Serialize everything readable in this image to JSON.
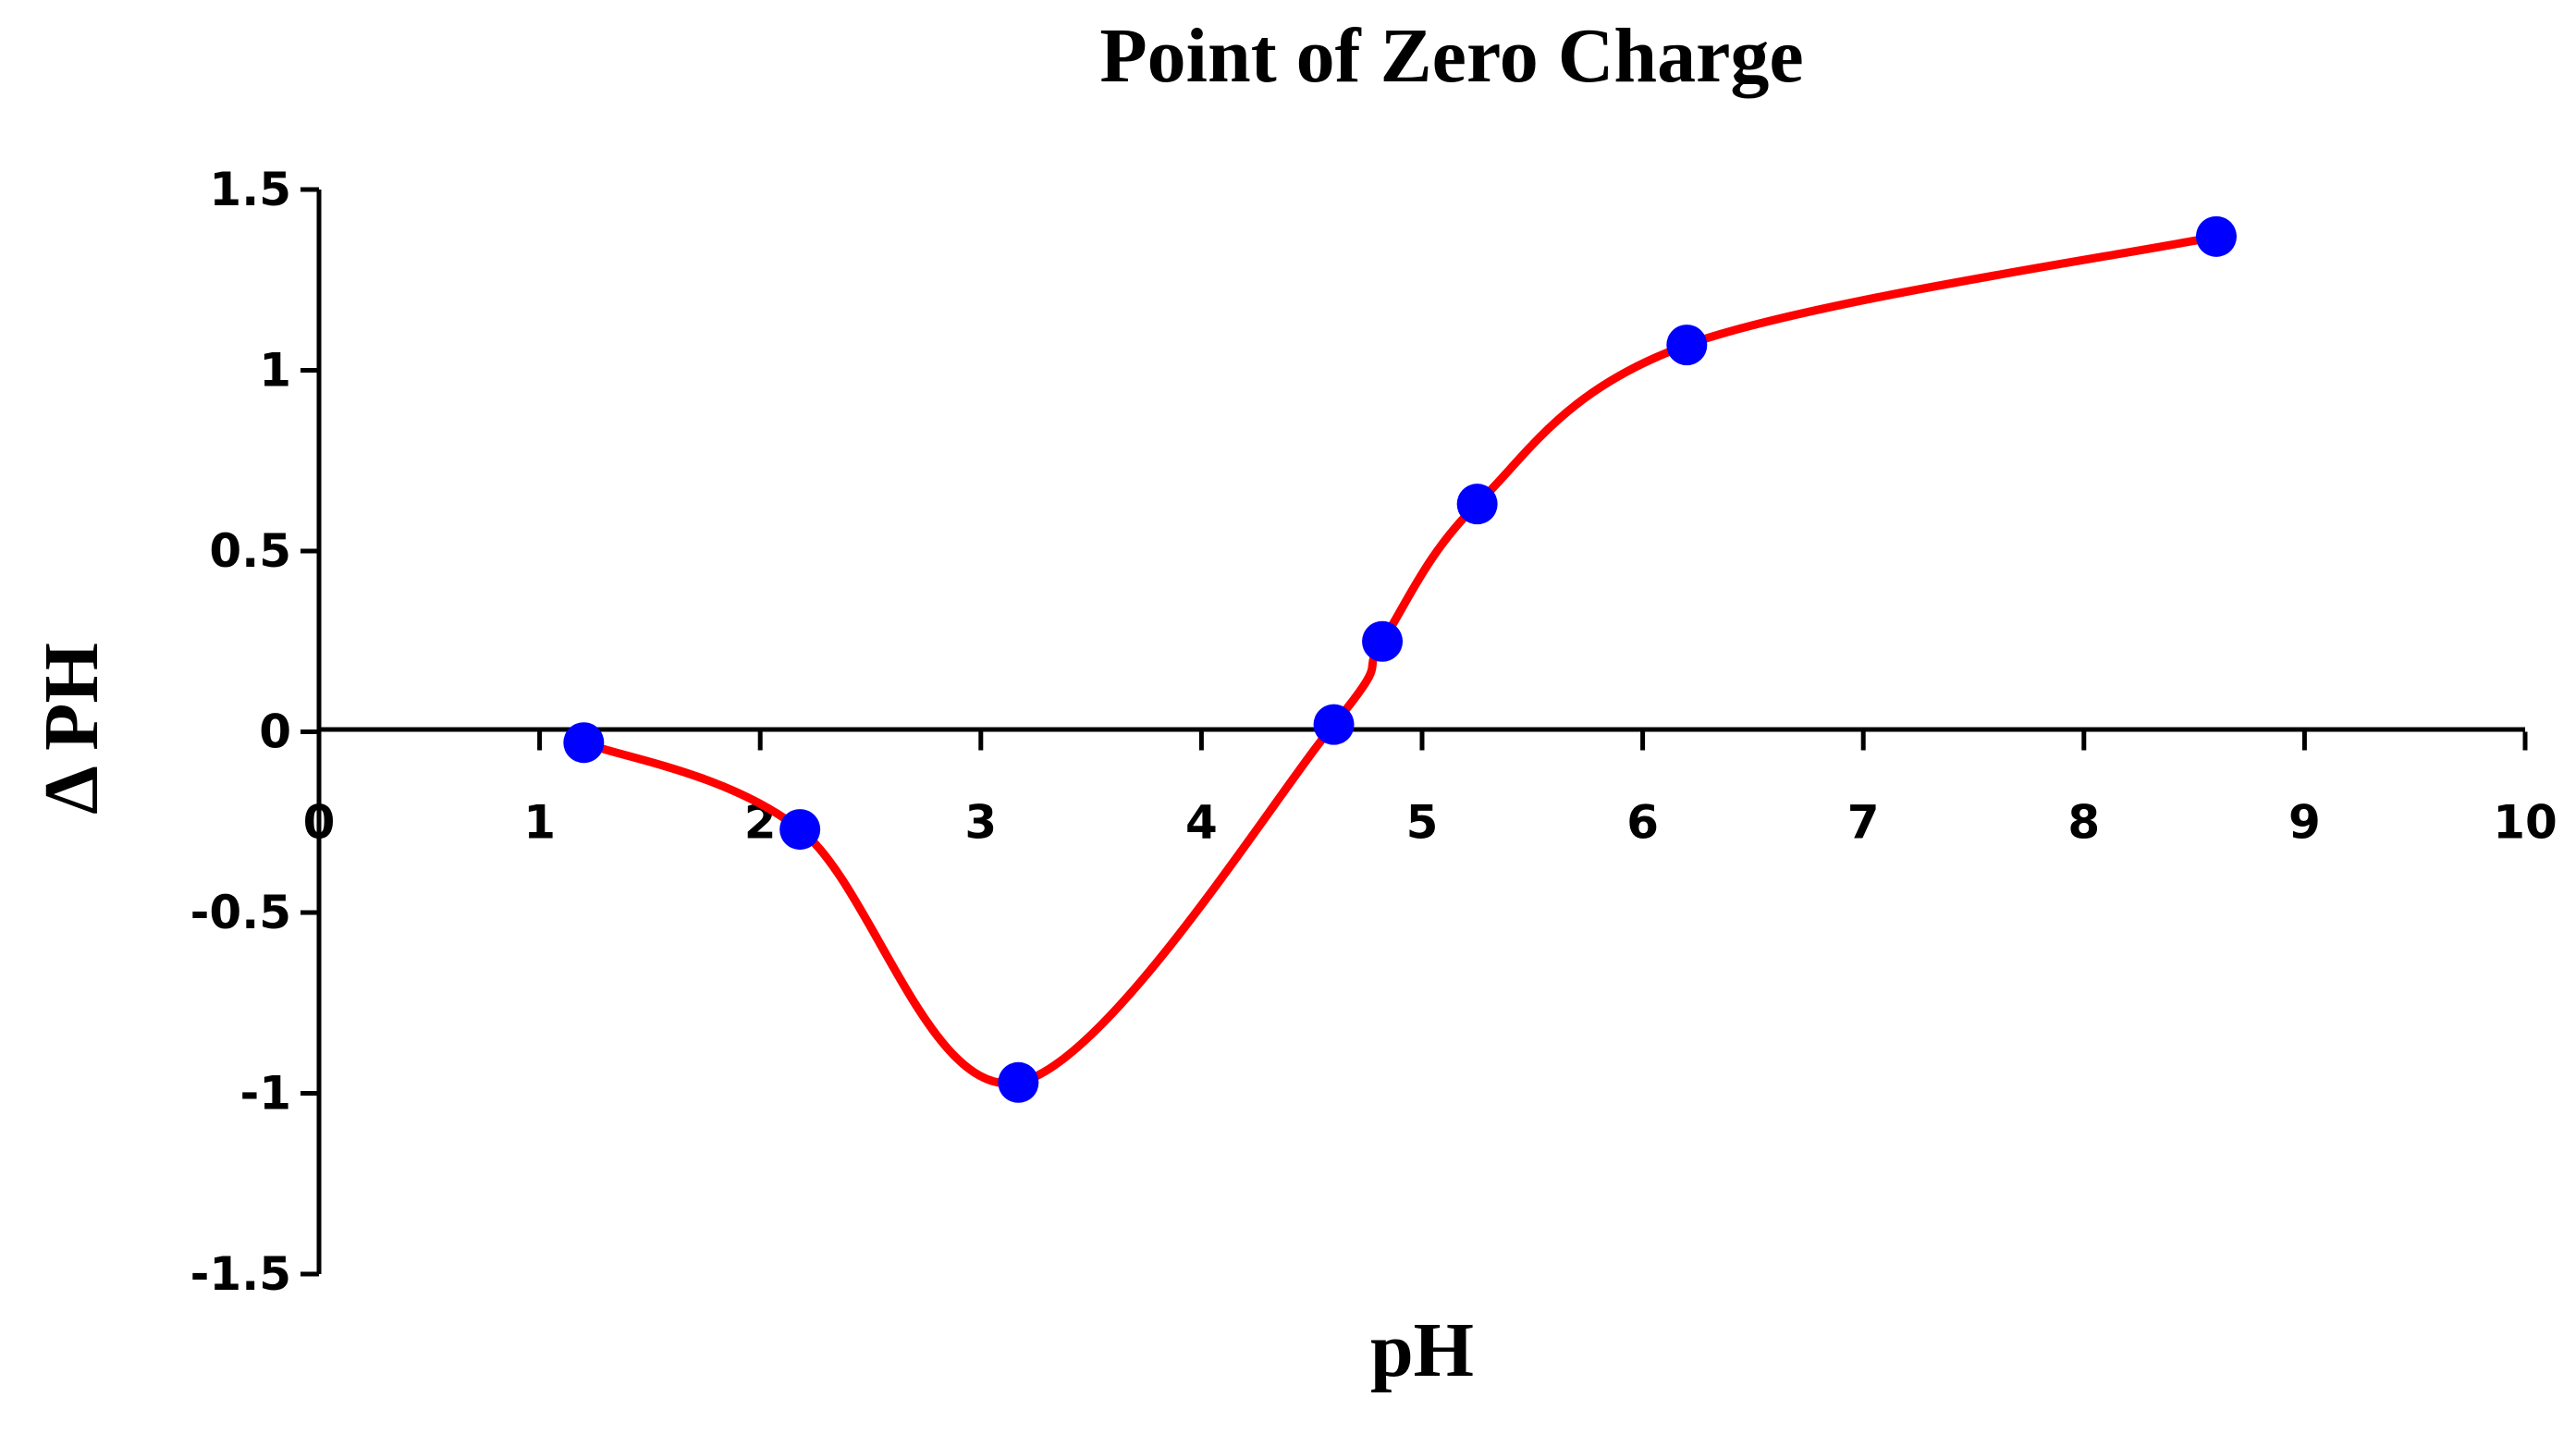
{
  "chart_data": {
    "type": "scatter",
    "title": "Point of Zero Charge",
    "xlabel": "pH",
    "ylabel": "Δ PH",
    "xlim": [
      0,
      10
    ],
    "ylim": [
      -1.5,
      1.5
    ],
    "x_ticks": [
      0,
      1,
      2,
      3,
      4,
      5,
      6,
      7,
      8,
      9,
      10
    ],
    "y_ticks": [
      1.5,
      1,
      0.5,
      0,
      -0.5,
      -1,
      -1.5
    ],
    "x_tick_labels": [
      "0",
      "1",
      "2",
      "3",
      "4",
      "5",
      "6",
      "7",
      "8",
      "9",
      "10"
    ],
    "y_tick_labels": [
      "1.5",
      "1",
      "0.5",
      "0",
      "-0.5",
      "-1",
      "-1.5"
    ],
    "grid": false,
    "legend": "none",
    "smooth_line": true,
    "series": [
      {
        "x": [
          1.2,
          2.18,
          3.17,
          4.6,
          4.82,
          5.25,
          6.2,
          8.6
        ],
        "y": [
          -0.03,
          -0.27,
          -0.97,
          0.02,
          0.25,
          0.63,
          1.07,
          1.37
        ],
        "marker_color": "#0000ff",
        "line_color": "#ff0000"
      }
    ]
  }
}
